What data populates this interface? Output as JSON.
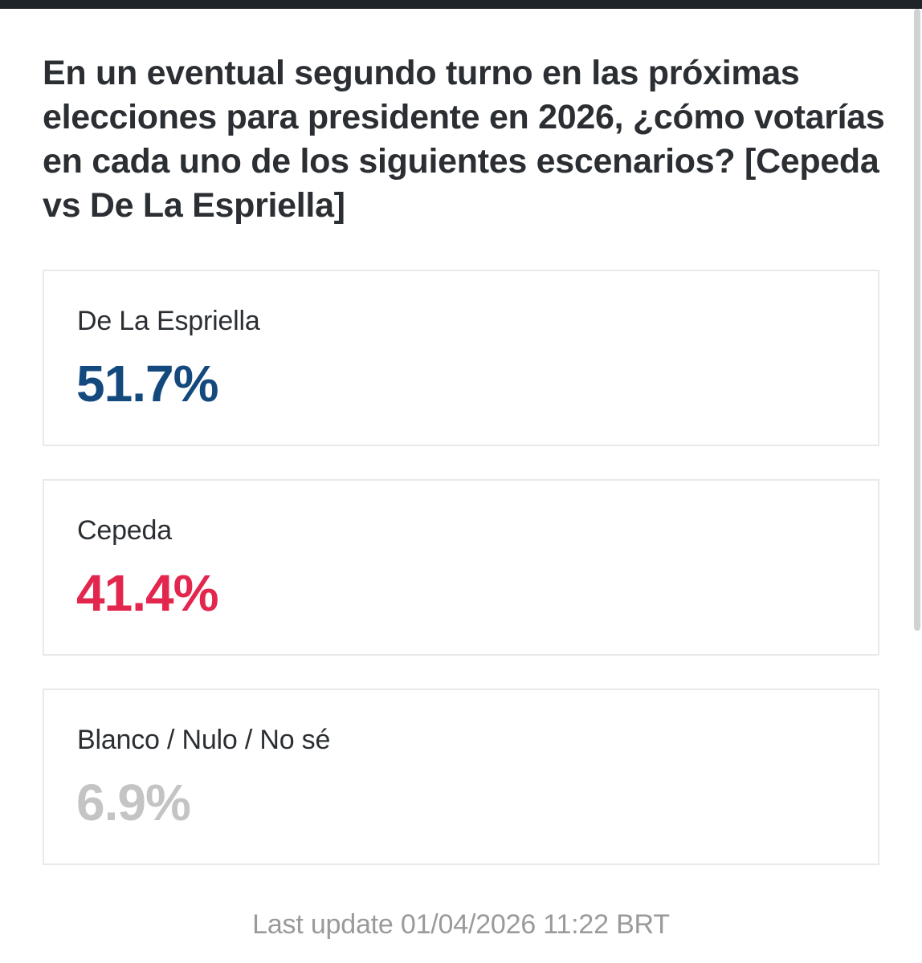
{
  "question": "En un eventual segundo turno en las próximas elecciones para presidente en 2026, ¿cómo votarías en cada uno de los siguientes escenarios? [Cepeda vs De La Espriella]",
  "results": [
    {
      "label": "De La Espriella",
      "value": "51.7%",
      "color": "#14497e"
    },
    {
      "label": "Cepeda",
      "value": "41.4%",
      "color": "#e3264d"
    },
    {
      "label": "Blanco / Nulo / No sé",
      "value": "6.9%",
      "color": "#c4c4c4"
    }
  ],
  "footer": "Last update 01/04/2026 11:22 BRT",
  "colors": {
    "text": "#2b2f33",
    "footer": "#9a9a9a",
    "card_border": "#e9e9e9",
    "top_bar": "#1f2429"
  }
}
